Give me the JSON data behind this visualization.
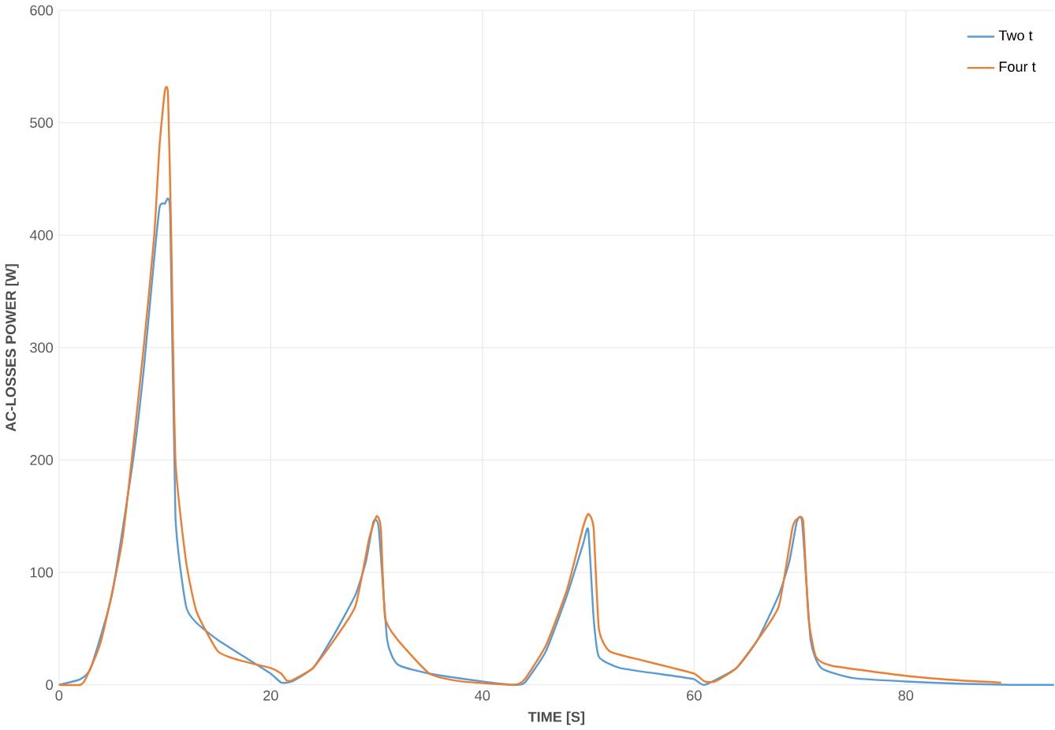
{
  "chart_data": {
    "type": "line",
    "xlabel": "TIME [S]",
    "ylabel": "AC-LOSSES POWER [W]",
    "xlim": [
      0,
      94
    ],
    "xticks": [
      0,
      20,
      40,
      60,
      80
    ],
    "ylim": [
      0,
      600
    ],
    "yticks": [
      0,
      100,
      200,
      300,
      400,
      500,
      600
    ],
    "grid": true,
    "legend": "top right",
    "line_style": "solid",
    "series": [
      {
        "name": "Two t",
        "color": "#5b9bd5",
        "x": [
          0,
          2,
          3,
          5,
          7,
          8,
          9,
          9.5,
          10,
          10.5,
          11,
          12,
          13,
          15,
          18,
          20,
          21,
          22,
          24,
          26,
          28,
          29,
          29.7,
          30.2,
          31,
          32,
          35,
          40,
          43,
          44,
          46,
          48,
          49.5,
          50,
          50.5,
          51,
          53,
          58,
          60,
          61,
          64,
          66,
          68,
          69,
          69.7,
          70.2,
          71,
          72,
          75,
          80,
          85,
          90,
          94
        ],
        "values": [
          0,
          5,
          15,
          80,
          200,
          280,
          380,
          425,
          428,
          420,
          150,
          70,
          55,
          40,
          22,
          10,
          2,
          3,
          15,
          45,
          80,
          110,
          145,
          140,
          40,
          18,
          10,
          3,
          0,
          2,
          30,
          80,
          125,
          138,
          60,
          25,
          15,
          8,
          5,
          0,
          15,
          40,
          80,
          110,
          145,
          145,
          40,
          15,
          6,
          3,
          1,
          0,
          0
        ]
      },
      {
        "name": "Four t",
        "color": "#ed7d31",
        "x": [
          0,
          2,
          2.5,
          4,
          6,
          8,
          9,
          9.5,
          10,
          10.3,
          10.6,
          11,
          12,
          13,
          15,
          17,
          20,
          21,
          21.5,
          22,
          24,
          26,
          28,
          29.3,
          30,
          30.4,
          30.8,
          32,
          35,
          38,
          43,
          44,
          46,
          48,
          49.5,
          50,
          50.5,
          51,
          52,
          55,
          58,
          60,
          61,
          62,
          64,
          66,
          68,
          69.3,
          69.8,
          70.3,
          70.8,
          71.5,
          73,
          80,
          85,
          89
        ],
        "values": [
          0,
          0,
          5,
          40,
          130,
          300,
          400,
          480,
          528,
          525,
          400,
          200,
          110,
          65,
          30,
          22,
          15,
          10,
          4,
          4,
          15,
          40,
          70,
          130,
          150,
          140,
          60,
          40,
          10,
          3,
          0,
          5,
          35,
          85,
          140,
          152,
          140,
          50,
          30,
          22,
          15,
          10,
          3,
          3,
          15,
          40,
          70,
          140,
          148,
          145,
          60,
          25,
          17,
          8,
          4,
          2
        ]
      }
    ]
  }
}
